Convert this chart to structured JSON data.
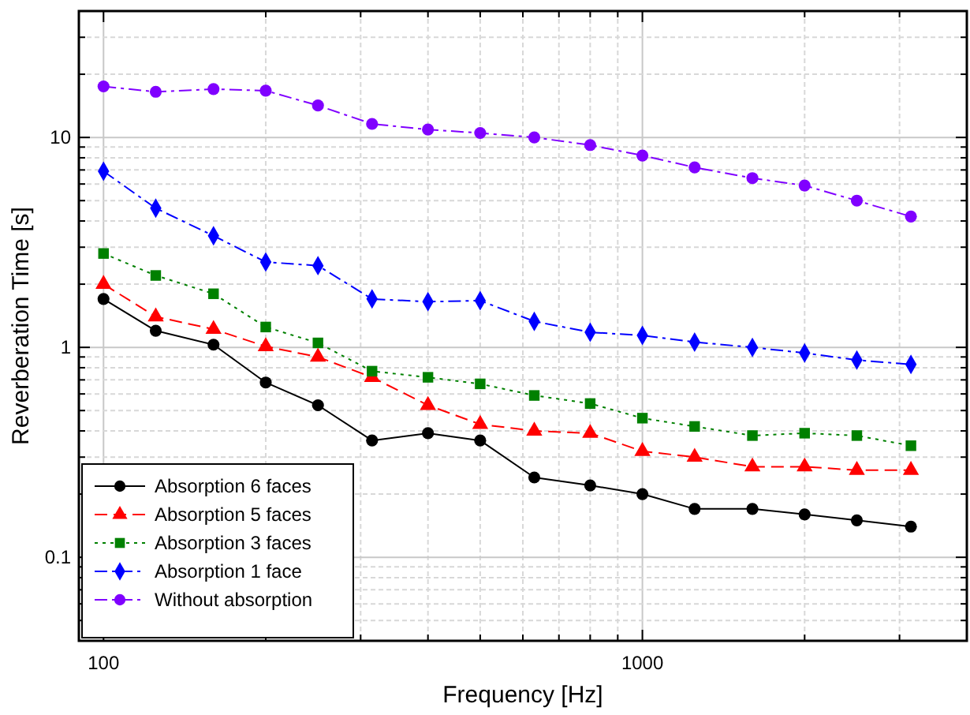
{
  "chart_data": {
    "type": "line",
    "xlabel": "Frequency [Hz]",
    "ylabel": "Reverberation Time [s]",
    "x": [
      100,
      125,
      160,
      200,
      250,
      315,
      400,
      500,
      630,
      800,
      1000,
      1250,
      1600,
      2000,
      2500,
      3150
    ],
    "log": "xy",
    "xlim": [
      90,
      4000
    ],
    "ylim": [
      0.04,
      40
    ],
    "xticks": [
      100,
      {
        "value": 200,
        "label": null
      },
      {
        "value": 300,
        "label": null
      },
      {
        "value": 400,
        "label": null
      },
      {
        "value": 500,
        "label": null
      },
      {
        "value": 600,
        "label": null
      },
      {
        "value": 700,
        "label": null
      },
      {
        "value": 800,
        "label": null
      },
      {
        "value": 900,
        "label": null
      },
      1000,
      {
        "value": 2000,
        "label": null
      },
      {
        "value": 3000,
        "label": null
      },
      {
        "value": 4000,
        "label": null
      }
    ],
    "yticks": [
      {
        "value": 0.05,
        "label": null
      },
      {
        "value": 0.06,
        "label": null
      },
      {
        "value": 0.07,
        "label": null
      },
      {
        "value": 0.08,
        "label": null
      },
      {
        "value": 0.09,
        "label": null
      },
      0.1,
      {
        "value": 0.2,
        "label": null
      },
      {
        "value": 0.3,
        "label": null
      },
      {
        "value": 0.4,
        "label": null
      },
      {
        "value": 0.5,
        "label": null
      },
      {
        "value": 0.6,
        "label": null
      },
      {
        "value": 0.7,
        "label": null
      },
      {
        "value": 0.8,
        "label": null
      },
      {
        "value": 0.9,
        "label": null
      },
      1,
      {
        "value": 2,
        "label": null
      },
      {
        "value": 3,
        "label": null
      },
      {
        "value": 4,
        "label": null
      },
      {
        "value": 5,
        "label": null
      },
      {
        "value": 6,
        "label": null
      },
      {
        "value": 7,
        "label": null
      },
      {
        "value": 8,
        "label": null
      },
      {
        "value": 9,
        "label": null
      },
      10,
      {
        "value": 20,
        "label": null
      },
      {
        "value": 30,
        "label": null
      },
      {
        "value": 40,
        "label": null
      }
    ],
    "grid": true,
    "legend": "bottom left",
    "series": [
      {
        "name": "Absorption 6 faces",
        "color": "#000000",
        "marker": "circle",
        "line_style": "solid",
        "values": [
          1.7,
          1.2,
          1.03,
          0.68,
          0.53,
          0.36,
          0.39,
          0.36,
          0.24,
          0.22,
          0.2,
          0.17,
          0.17,
          0.16,
          0.15,
          0.14
        ]
      },
      {
        "name": "Absorption 5 faces",
        "color": "#ff0000",
        "marker": "triangle",
        "line_style": "dashed",
        "values": [
          2.0,
          1.4,
          1.22,
          1.01,
          0.9,
          0.72,
          0.53,
          0.43,
          0.4,
          0.39,
          0.32,
          0.3,
          0.27,
          0.27,
          0.26,
          0.26
        ]
      },
      {
        "name": "Absorption 3 faces",
        "color": "#008000",
        "marker": "square",
        "line_style": "dotted",
        "values": [
          2.8,
          2.2,
          1.8,
          1.25,
          1.05,
          0.77,
          0.72,
          0.67,
          0.59,
          0.54,
          0.46,
          0.42,
          0.38,
          0.39,
          0.38,
          0.34
        ]
      },
      {
        "name": "Absorption 1 face",
        "color": "#0000ff",
        "marker": "diamond",
        "line_style": "dashdot",
        "values": [
          6.9,
          4.6,
          3.4,
          2.55,
          2.45,
          1.7,
          1.65,
          1.67,
          1.33,
          1.18,
          1.14,
          1.06,
          1.0,
          0.94,
          0.87,
          0.83
        ]
      },
      {
        "name": "Without absorption",
        "color": "#8000ff",
        "marker": "circle",
        "line_style": "dashdot",
        "values": [
          17.5,
          16.5,
          17,
          16.7,
          14.2,
          11.6,
          10.9,
          10.5,
          10.0,
          9.2,
          8.2,
          7.2,
          6.4,
          5.9,
          5.0,
          4.2
        ]
      }
    ]
  }
}
